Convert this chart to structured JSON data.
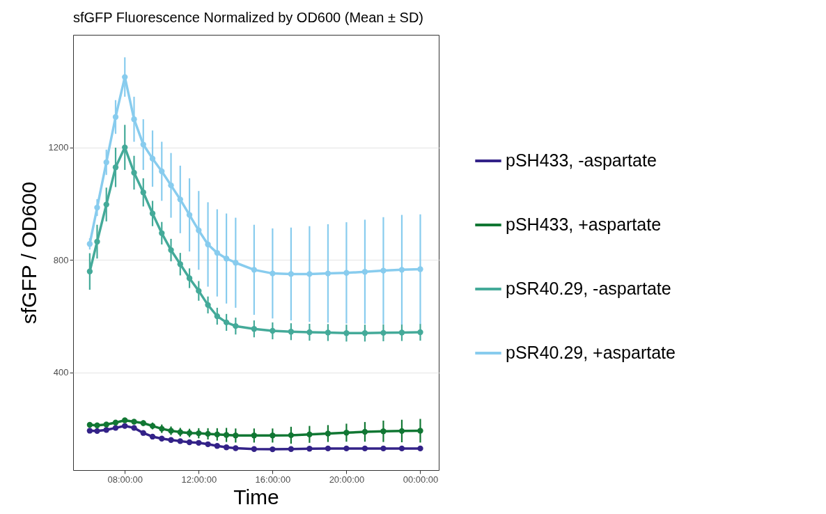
{
  "chart_data": {
    "type": "line",
    "title": "sfGFP Fluorescence Normalized by OD600 (Mean ± SD)",
    "xlabel": "Time",
    "ylabel": "sfGFP / OD600",
    "x": [
      "--01-01T06:06",
      "--01-01T06:30",
      "--01-01T07:00",
      "--01-01T07:30",
      "--01-01T08:00",
      "--01-01T08:30",
      "--01-01T09:00",
      "--01-01T09:30",
      "--01-01T10:00",
      "--01-01T10:30",
      "--01-01T11:00",
      "--01-01T11:30",
      "--01-01T12:00",
      "--01-01T12:30",
      "--01-01T13:00",
      "--01-01T13:30",
      "--01-01T14:00",
      "--01-01T15:00",
      "--01-01T16:00",
      "--01-01T17:00",
      "--01-01T18:00",
      "--01-01T19:00",
      "--01-01T20:00",
      "--01-01T21:00",
      "--01-01T22:00",
      "--01-01T23:00",
      "--01-02T00:00"
    ],
    "xlim": [
      "--01-01T05:12",
      "--01-02T01:00"
    ],
    "xticks": [
      {
        "value": "--01-01T08:00",
        "label": "08:00:00"
      },
      {
        "value": "--01-01T12:00",
        "label": "12:00:00"
      },
      {
        "value": "--01-01T16:00",
        "label": "16:00:00"
      },
      {
        "value": "--01-01T20:00",
        "label": "20:00:00"
      },
      {
        "value": "--01-02T00:00",
        "label": "00:00:00"
      }
    ],
    "ylim": [
      53,
      1600
    ],
    "yticks": [
      400,
      800,
      1200
    ],
    "grid": "y",
    "legend": "right",
    "marker": "circle",
    "line_style": "solid",
    "series": [
      {
        "name": "pSH433, -aspartate",
        "color": "#332288",
        "values": [
          193,
          192,
          196,
          203,
          210,
          203,
          185,
          172,
          165,
          160,
          156,
          152,
          150,
          145,
          139,
          134,
          131,
          128,
          127,
          128,
          129,
          130,
          130,
          130,
          130,
          130,
          130
        ],
        "errors": [
          6,
          6,
          6,
          6,
          6,
          6,
          6,
          6,
          6,
          6,
          6,
          6,
          6,
          6,
          6,
          6,
          6,
          6,
          6,
          6,
          6,
          6,
          6,
          6,
          6,
          6,
          6
        ]
      },
      {
        "name": "pSH433, +aspartate",
        "color": "#117733",
        "values": [
          214,
          212,
          215,
          222,
          230,
          225,
          220,
          210,
          200,
          193,
          188,
          185,
          184,
          182,
          180,
          178,
          176,
          176,
          176,
          177,
          180,
          183,
          186,
          189,
          191,
          192,
          193
        ],
        "errors": [
          8,
          8,
          8,
          8,
          8,
          8,
          10,
          12,
          15,
          15,
          15,
          15,
          18,
          20,
          22,
          25,
          25,
          25,
          25,
          30,
          30,
          30,
          32,
          35,
          38,
          40,
          42
        ]
      },
      {
        "name": "pSR40.29, -aspartate",
        "color": "#44aa99",
        "values": [
          759,
          865,
          997,
          1129,
          1200,
          1110,
          1040,
          965,
          895,
          835,
          785,
          735,
          690,
          640,
          600,
          578,
          565,
          555,
          548,
          545,
          543,
          542,
          540,
          540,
          541,
          542,
          543
        ],
        "errors": [
          65,
          60,
          60,
          70,
          80,
          60,
          50,
          45,
          40,
          40,
          40,
          35,
          35,
          30,
          30,
          30,
          30,
          30,
          30,
          30,
          30,
          30,
          30,
          30,
          30,
          30,
          30
        ]
      },
      {
        "name": "pSR40.29, +aspartate",
        "color": "#88ccee",
        "values": [
          857,
          986,
          1147,
          1308,
          1450,
          1300,
          1210,
          1160,
          1115,
          1065,
          1015,
          960,
          905,
          855,
          825,
          805,
          790,
          765,
          752,
          750,
          750,
          752,
          754,
          758,
          762,
          765,
          767
        ],
        "errors": [
          20,
          30,
          45,
          60,
          70,
          80,
          90,
          100,
          105,
          115,
          120,
          130,
          140,
          150,
          155,
          160,
          160,
          160,
          160,
          165,
          170,
          175,
          180,
          185,
          190,
          195,
          195
        ]
      }
    ]
  }
}
